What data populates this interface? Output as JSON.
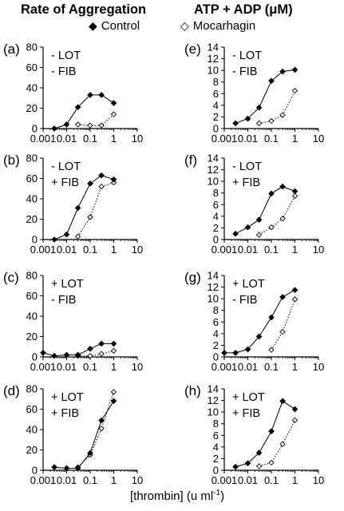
{
  "columns": {
    "left_title": "Rate of Aggregation",
    "right_title": "ATP + ADP (μM)"
  },
  "legend": {
    "control": "Control",
    "mocarhagin": "Mocarhagin"
  },
  "xlabel": "[thrombin] (u ml",
  "xlabel_sup": "-1",
  "xlabel_close": ")",
  "colors": {
    "ink": "#000000",
    "marker_open_fill": "#ffffff"
  },
  "chart_data": [
    {
      "type": "line",
      "panel": "(a)",
      "lot": "- LOT",
      "fib": "- FIB",
      "xscale": "log",
      "xlim": [
        0.001,
        10
      ],
      "ylim": [
        0,
        80
      ],
      "xticks": [
        "0.001",
        "0.01",
        "0.1",
        "1",
        "10"
      ],
      "yticks": [
        "0",
        "20",
        "40",
        "60",
        "80"
      ],
      "series": [
        {
          "name": "Control",
          "marker": "filled-diamond",
          "line": "solid",
          "x": [
            0.003,
            0.01,
            0.03,
            0.1,
            0.3,
            1
          ],
          "y": [
            0,
            4,
            21,
            33,
            33,
            25
          ]
        },
        {
          "name": "Mocarhagin",
          "marker": "open-diamond",
          "line": "dotted",
          "x": [
            0.03,
            0.1,
            0.3,
            1
          ],
          "y": [
            4,
            3,
            3,
            14
          ]
        }
      ]
    },
    {
      "type": "line",
      "panel": "(b)",
      "lot": "- LOT",
      "fib": "+ FIB",
      "xscale": "log",
      "xlim": [
        0.001,
        10
      ],
      "ylim": [
        0,
        80
      ],
      "xticks": [
        "0.001",
        "0.01",
        "0.1",
        "1",
        "10"
      ],
      "yticks": [
        "0",
        "20",
        "40",
        "60",
        "80"
      ],
      "series": [
        {
          "name": "Control",
          "marker": "filled-diamond",
          "line": "solid",
          "x": [
            0.003,
            0.01,
            0.03,
            0.1,
            0.3,
            1
          ],
          "y": [
            0,
            5,
            31,
            55,
            63,
            59
          ]
        },
        {
          "name": "Mocarhagin",
          "marker": "open-diamond",
          "line": "dotted",
          "x": [
            0.03,
            0.1,
            0.3,
            1
          ],
          "y": [
            3,
            22,
            52,
            56
          ]
        }
      ]
    },
    {
      "type": "line",
      "panel": "(c)",
      "lot": "+ LOT",
      "fib": "- FIB",
      "xscale": "log",
      "xlim": [
        0.001,
        10
      ],
      "ylim": [
        0,
        80
      ],
      "xticks": [
        "0.001",
        "0.01",
        "0.1",
        "1",
        "10"
      ],
      "yticks": [
        "0",
        "20",
        "40",
        "60",
        "80"
      ],
      "series": [
        {
          "name": "Control",
          "marker": "filled-diamond",
          "line": "solid",
          "x": [
            0.001,
            0.003,
            0.01,
            0.03,
            0.1,
            0.3,
            1
          ],
          "y": [
            4,
            1,
            2,
            2,
            8,
            13,
            13
          ]
        },
        {
          "name": "Mocarhagin",
          "marker": "open-diamond",
          "line": "dotted",
          "x": [
            0.03,
            0.1,
            0.3,
            1
          ],
          "y": [
            1,
            1,
            3,
            6
          ]
        }
      ]
    },
    {
      "type": "line",
      "panel": "(d)",
      "lot": "+ LOT",
      "fib": "+ FIB",
      "xscale": "log",
      "xlim": [
        0.001,
        10
      ],
      "ylim": [
        0,
        80
      ],
      "xticks": [
        "0.001",
        "0.01",
        "0.1",
        "1",
        "10"
      ],
      "yticks": [
        "0",
        "20",
        "40",
        "60",
        "80"
      ],
      "series": [
        {
          "name": "Control",
          "marker": "filled-diamond",
          "line": "solid",
          "x": [
            0.003,
            0.01,
            0.03,
            0.1,
            0.3,
            1
          ],
          "y": [
            3,
            2,
            2,
            17,
            49,
            68
          ]
        },
        {
          "name": "Mocarhagin",
          "marker": "open-diamond",
          "line": "dotted",
          "x": [
            0.03,
            0.1,
            0.3,
            1
          ],
          "y": [
            3,
            15,
            41,
            77
          ]
        }
      ]
    },
    {
      "type": "line",
      "panel": "(e)",
      "lot": "- LOT",
      "fib": "- FIB",
      "xscale": "log",
      "xlim": [
        0.001,
        10
      ],
      "ylim": [
        0,
        14
      ],
      "xticks": [
        "0.001",
        "0.01",
        "0.1",
        "1",
        "10"
      ],
      "yticks": [
        "0",
        "2",
        "4",
        "6",
        "8",
        "10",
        "12",
        "14"
      ],
      "series": [
        {
          "name": "Control",
          "marker": "filled-diamond",
          "line": "solid",
          "x": [
            0.003,
            0.01,
            0.03,
            0.1,
            0.3,
            1
          ],
          "y": [
            0.9,
            1.7,
            3.6,
            8.2,
            9.8,
            10.1
          ]
        },
        {
          "name": "Mocarhagin",
          "marker": "open-diamond",
          "line": "dotted",
          "x": [
            0.03,
            0.1,
            0.3,
            1
          ],
          "y": [
            0.9,
            1.3,
            2.3,
            6.5
          ]
        }
      ]
    },
    {
      "type": "line",
      "panel": "(f)",
      "lot": "- LOT",
      "fib": "+ FIB",
      "xscale": "log",
      "xlim": [
        0.001,
        10
      ],
      "ylim": [
        0,
        14
      ],
      "xticks": [
        "0.001",
        "0.01",
        "0.1",
        "1",
        "10"
      ],
      "yticks": [
        "0",
        "2",
        "4",
        "6",
        "8",
        "10",
        "12",
        "14"
      ],
      "series": [
        {
          "name": "Control",
          "marker": "filled-diamond",
          "line": "solid",
          "x": [
            0.003,
            0.01,
            0.03,
            0.1,
            0.3,
            1
          ],
          "y": [
            1.0,
            2.1,
            3.4,
            7.9,
            9.1,
            8.3
          ]
        },
        {
          "name": "Mocarhagin",
          "marker": "open-diamond",
          "line": "dotted",
          "x": [
            0.03,
            0.1,
            0.3,
            1
          ],
          "y": [
            0.8,
            2.1,
            3.6,
            7.5
          ]
        }
      ]
    },
    {
      "type": "line",
      "panel": "(g)",
      "lot": "+ LOT",
      "fib": "- FIB",
      "xscale": "log",
      "xlim": [
        0.001,
        10
      ],
      "ylim": [
        0,
        14
      ],
      "xticks": [
        "0.001",
        "0.01",
        "0.1",
        "1",
        "10"
      ],
      "yticks": [
        "0",
        "2",
        "4",
        "6",
        "8",
        "10",
        "12",
        "14"
      ],
      "series": [
        {
          "name": "Control",
          "marker": "filled-diamond",
          "line": "solid",
          "x": [
            0.001,
            0.003,
            0.01,
            0.03,
            0.1,
            0.3,
            1
          ],
          "y": [
            0.7,
            0.7,
            1.3,
            3.5,
            6.8,
            10.3,
            11.5
          ]
        },
        {
          "name": "Mocarhagin",
          "marker": "open-diamond",
          "line": "dotted",
          "x": [
            0.1,
            0.3,
            1
          ],
          "y": [
            1.2,
            4.3,
            9.9
          ]
        }
      ]
    },
    {
      "type": "line",
      "panel": "(h)",
      "lot": "+ LOT",
      "fib": "+ FIB",
      "xscale": "log",
      "xlim": [
        0.001,
        10
      ],
      "ylim": [
        0,
        14
      ],
      "xticks": [
        "0.001",
        "0.01",
        "0.1",
        "1",
        "10"
      ],
      "yticks": [
        "0",
        "2",
        "4",
        "6",
        "8",
        "10",
        "12",
        "14"
      ],
      "series": [
        {
          "name": "Control",
          "marker": "filled-diamond",
          "line": "solid",
          "x": [
            0.003,
            0.01,
            0.03,
            0.1,
            0.3,
            1
          ],
          "y": [
            0.6,
            1.2,
            3.0,
            6.7,
            11.9,
            10.5
          ]
        },
        {
          "name": "Mocarhagin",
          "marker": "open-diamond",
          "line": "dotted",
          "x": [
            0.03,
            0.1,
            0.3,
            1
          ],
          "y": [
            0.7,
            1.3,
            4.5,
            8.6
          ]
        }
      ]
    }
  ]
}
